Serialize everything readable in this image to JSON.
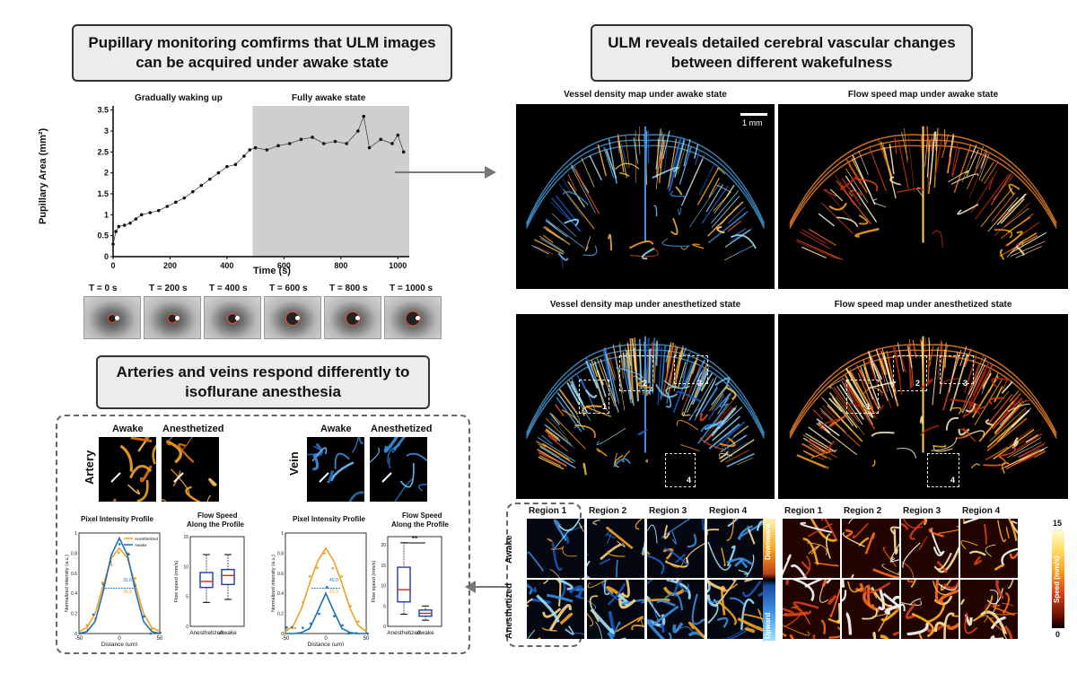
{
  "titles": {
    "pupil": "Pupillary monitoring comfirms that ULM images can be acquired under awake state",
    "ulm": "ULM reveals detailed cerebral vascular changes between different wakefulness",
    "arteries": "Arteries and veins respond differently to isoflurane anesthesia"
  },
  "pupil_chart": {
    "phase1": "Gradually waking up",
    "phase2": "Fully awake state",
    "ylabel": "Pupillary Area (mm²)",
    "xlabel": "Time (s)",
    "yticks": [
      "0",
      "0.5",
      "1",
      "1.5",
      "2",
      "2.5",
      "3",
      "3.5"
    ],
    "xticks": [
      "0",
      "200",
      "400",
      "600",
      "800",
      "1000"
    ]
  },
  "eye_frames": [
    "T = 0 s",
    "T = 200 s",
    "T = 400 s",
    "T = 600 s",
    "T = 800 s",
    "T = 1000 s"
  ],
  "maps": {
    "awake_density": "Vessel density map under awake state",
    "awake_speed": "Flow speed map under awake state",
    "anest_density": "Vessel density map under anesthetized state",
    "anest_speed": "Flow speed map under anesthetized state",
    "scalebar": "1 mm",
    "roi_labels": [
      "1",
      "2",
      "3",
      "4"
    ]
  },
  "regions": {
    "labels": [
      "Region 1",
      "Region 2",
      "Region 3",
      "Region 4"
    ],
    "row_awake": "Awake",
    "row_anest": "Anesthetized",
    "cbar_down": "Downward",
    "cbar_up": "Upward",
    "speed_max": "15",
    "speed_min": "0",
    "speed_label": "Speed (mm/s)"
  },
  "vessels": {
    "awake": "Awake",
    "anest": "Anesthetized",
    "artery": "Artery",
    "vein": "Vein",
    "profile_title": "Pixel Intensity Profile",
    "speed_title_1": "Flow Speed",
    "speed_title_2": "Along the Profile",
    "ylabel_intensity": "Normalized intensity (a.u.)",
    "xlabel_distance": "Distance (μm)",
    "ylabel_speed": "Flow speed (mm/s)",
    "legend_anest": "Anesthetized",
    "legend_awake": "Awake",
    "artery_fwhm_awake": "33.6",
    "artery_fwhm_anest": "36.5",
    "vein_fwhm_anest": "40.0",
    "vein_fwhm_awake": "23.9",
    "significance": "**",
    "box_cat_1": "Anesthetized",
    "box_cat_2": "Awake"
  },
  "chart_data": [
    {
      "type": "scatter",
      "title": "",
      "xlabel": "Time (s)",
      "ylabel": "Pupillary Area (mm²)",
      "xlim": [
        0,
        1040
      ],
      "ylim": [
        0,
        3.6
      ],
      "shaded_region": [
        490,
        1040
      ],
      "series": [
        {
          "x": [
            0,
            10,
            20,
            40,
            60,
            80,
            100,
            130,
            160,
            190,
            220,
            250,
            280,
            310,
            340,
            370,
            400,
            430,
            460,
            480,
            500,
            540,
            580,
            620,
            660,
            700,
            740,
            780,
            820,
            860,
            880,
            900,
            940,
            980,
            1000,
            1020
          ],
          "y": [
            0.3,
            0.6,
            0.72,
            0.75,
            0.8,
            0.9,
            1.0,
            1.05,
            1.1,
            1.2,
            1.3,
            1.4,
            1.55,
            1.7,
            1.85,
            2.0,
            2.15,
            2.2,
            2.4,
            2.55,
            2.6,
            2.55,
            2.65,
            2.7,
            2.8,
            2.85,
            2.7,
            2.75,
            2.7,
            3.0,
            3.35,
            2.6,
            2.8,
            2.7,
            2.9,
            2.5
          ]
        }
      ]
    },
    {
      "type": "line",
      "title": "Pixel Intensity Profile",
      "xlabel": "Distance (μm)",
      "ylabel": "Normalized intensity (a.u.)",
      "xlim": [
        -50,
        50
      ],
      "ylim": [
        0,
        1
      ],
      "x": [
        -50,
        -40,
        -30,
        -20,
        -10,
        0,
        10,
        20,
        30,
        40,
        50
      ],
      "series": [
        {
          "name": "Anesthetized",
          "values": [
            0.02,
            0.06,
            0.2,
            0.48,
            0.75,
            0.85,
            0.75,
            0.48,
            0.2,
            0.06,
            0.02
          ]
        },
        {
          "name": "Awake",
          "values": [
            0.0,
            0.02,
            0.12,
            0.42,
            0.78,
            0.95,
            0.78,
            0.42,
            0.12,
            0.02,
            0.0
          ]
        }
      ]
    },
    {
      "type": "line",
      "title": "Pixel Intensity Profile",
      "xlabel": "Distance (μm)",
      "ylabel": "Normalized intensity (a.u.)",
      "xlim": [
        -50,
        50
      ],
      "ylim": [
        0,
        1
      ],
      "x": [
        -50,
        -40,
        -30,
        -20,
        -10,
        0,
        10,
        20,
        30,
        40,
        50
      ],
      "series": [
        {
          "name": "Anesthetized",
          "values": [
            0.02,
            0.08,
            0.25,
            0.5,
            0.72,
            0.85,
            0.72,
            0.5,
            0.25,
            0.08,
            0.02
          ]
        },
        {
          "name": "Awake",
          "values": [
            0.0,
            0.0,
            0.01,
            0.05,
            0.22,
            0.4,
            0.22,
            0.05,
            0.01,
            0.0,
            0.0
          ]
        }
      ]
    },
    {
      "type": "box",
      "title": "Flow Speed Along the Profile",
      "ylabel": "Flow speed (mm/s)",
      "categories": [
        "Anesthetized",
        "Awake"
      ],
      "ylim": [
        0,
        15
      ],
      "boxes": [
        {
          "min": 4,
          "q1": 6.5,
          "median": 7.5,
          "q3": 9,
          "max": 12
        },
        {
          "min": 4.5,
          "q1": 7,
          "median": 8.5,
          "q3": 9.5,
          "max": 12
        }
      ]
    },
    {
      "type": "box",
      "title": "Flow Speed Along the Profile",
      "ylabel": "Flow speed (mm/s)",
      "categories": [
        "Anesthetized",
        "Awake"
      ],
      "ylim": [
        0,
        22
      ],
      "boxes": [
        {
          "min": 3,
          "q1": 6,
          "median": 9,
          "q3": 14.5,
          "max": 20.5
        },
        {
          "min": 1.5,
          "q1": 2.5,
          "median": 3.2,
          "q3": 4,
          "max": 5
        }
      ]
    }
  ]
}
